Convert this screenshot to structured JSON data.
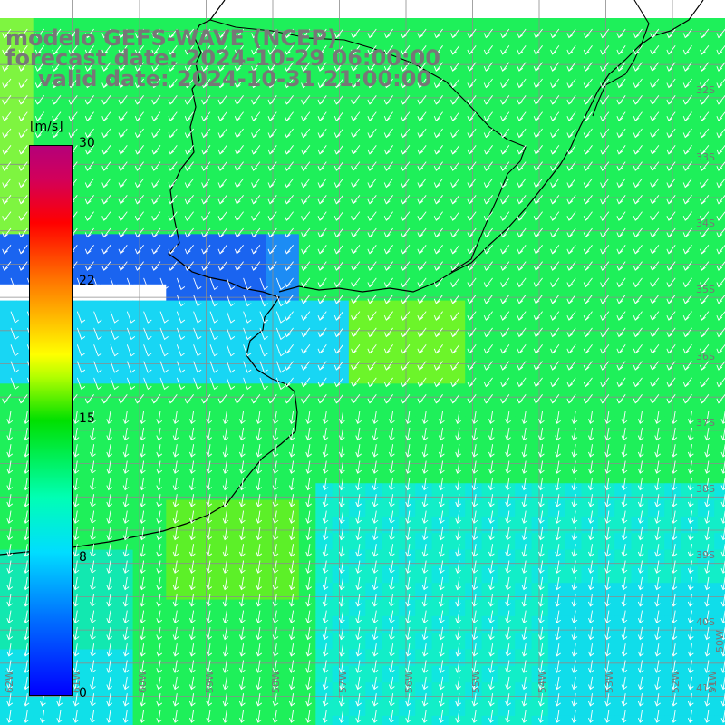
{
  "title": {
    "line1": "modelo GEFS-WAVE (NCEP)",
    "line2": "forecast date: 2024-10-29 06:00:00",
    "line3": "valid date: 2024-10-31 21:00:00"
  },
  "colorbar": {
    "unit": "[m/s]",
    "ticks": [
      "30",
      "22",
      "15",
      "8",
      "0"
    ]
  },
  "latitude_labels": [
    "32S",
    "33S",
    "34S",
    "35S",
    "36S",
    "37S",
    "38S",
    "39S",
    "40S",
    "41S"
  ],
  "longitude_labels": [
    "62W",
    "61W",
    "60W",
    "59W",
    "58W",
    "57W",
    "56W",
    "55W",
    "54W",
    "53W",
    "52W",
    "51W",
    "50W"
  ],
  "colors": {
    "land": "#ffffff",
    "coast": "#000000",
    "grid": "#8c8c8c",
    "text": "#777777",
    "arrows": "#ffffff"
  }
}
